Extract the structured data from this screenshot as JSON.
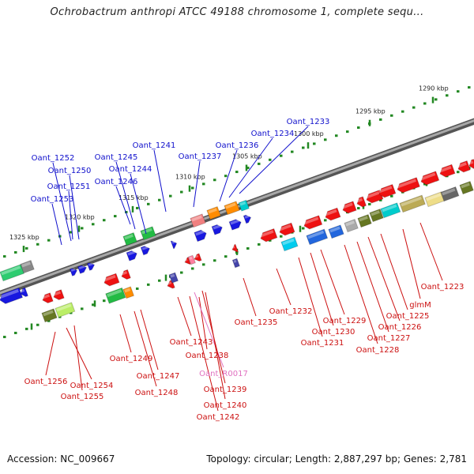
{
  "title": "Ochrobactrum anthropi ATCC 49188 chromosome 1, complete sequ...",
  "footer": {
    "accession": "Accession: NC_009667",
    "topology": "Topology: circular; Length: 2,887,297 bp; Genes: 2,781"
  },
  "colors": {
    "label_top": "#1010cc",
    "label_bottom": "#cc1010",
    "label_rna": "#e070c0",
    "backbone": "#777777",
    "tick_line": "#228822"
  },
  "scale_ticks": [
    {
      "text": "1325 kbp"
    },
    {
      "text": "1320 kbp"
    },
    {
      "text": "1315 kbp"
    },
    {
      "text": "1310 kbp"
    },
    {
      "text": "1305 kbp"
    },
    {
      "text": "1300 kbp"
    },
    {
      "text": "1295 kbp"
    },
    {
      "text": "1290 kbp"
    }
  ],
  "top_labels": [
    {
      "text": "Oant_1233"
    },
    {
      "text": "Oant_1234"
    },
    {
      "text": "Oant_1236"
    },
    {
      "text": "Oant_1241"
    },
    {
      "text": "Oant_1237"
    },
    {
      "text": "Oant_1245"
    },
    {
      "text": "Oant_1244"
    },
    {
      "text": "Oant_1252"
    },
    {
      "text": "Oant_1250"
    },
    {
      "text": "Oant_1246"
    },
    {
      "text": "Oant_1251"
    },
    {
      "text": "Oant_1253"
    }
  ],
  "bottom_labels": [
    {
      "text": "Oant_1223"
    },
    {
      "text": "glmM"
    },
    {
      "text": "Oant_1225"
    },
    {
      "text": "Oant_1226"
    },
    {
      "text": "Oant_1227"
    },
    {
      "text": "Oant_1228"
    },
    {
      "text": "Oant_1229"
    },
    {
      "text": "Oant_1230"
    },
    {
      "text": "Oant_1231"
    },
    {
      "text": "Oant_1232"
    },
    {
      "text": "Oant_1235"
    },
    {
      "text": "Oant_1238"
    },
    {
      "text": "Oant_R0017"
    },
    {
      "text": "Oant_1239"
    },
    {
      "text": "Oant_1240"
    },
    {
      "text": "Oant_1242"
    },
    {
      "text": "Oant_1243"
    },
    {
      "text": "Oant_1249"
    },
    {
      "text": "Oant_1247"
    },
    {
      "text": "Oant_1248"
    },
    {
      "text": "Oant_1256"
    },
    {
      "text": "Oant_1254"
    },
    {
      "text": "Oant_1255"
    }
  ]
}
